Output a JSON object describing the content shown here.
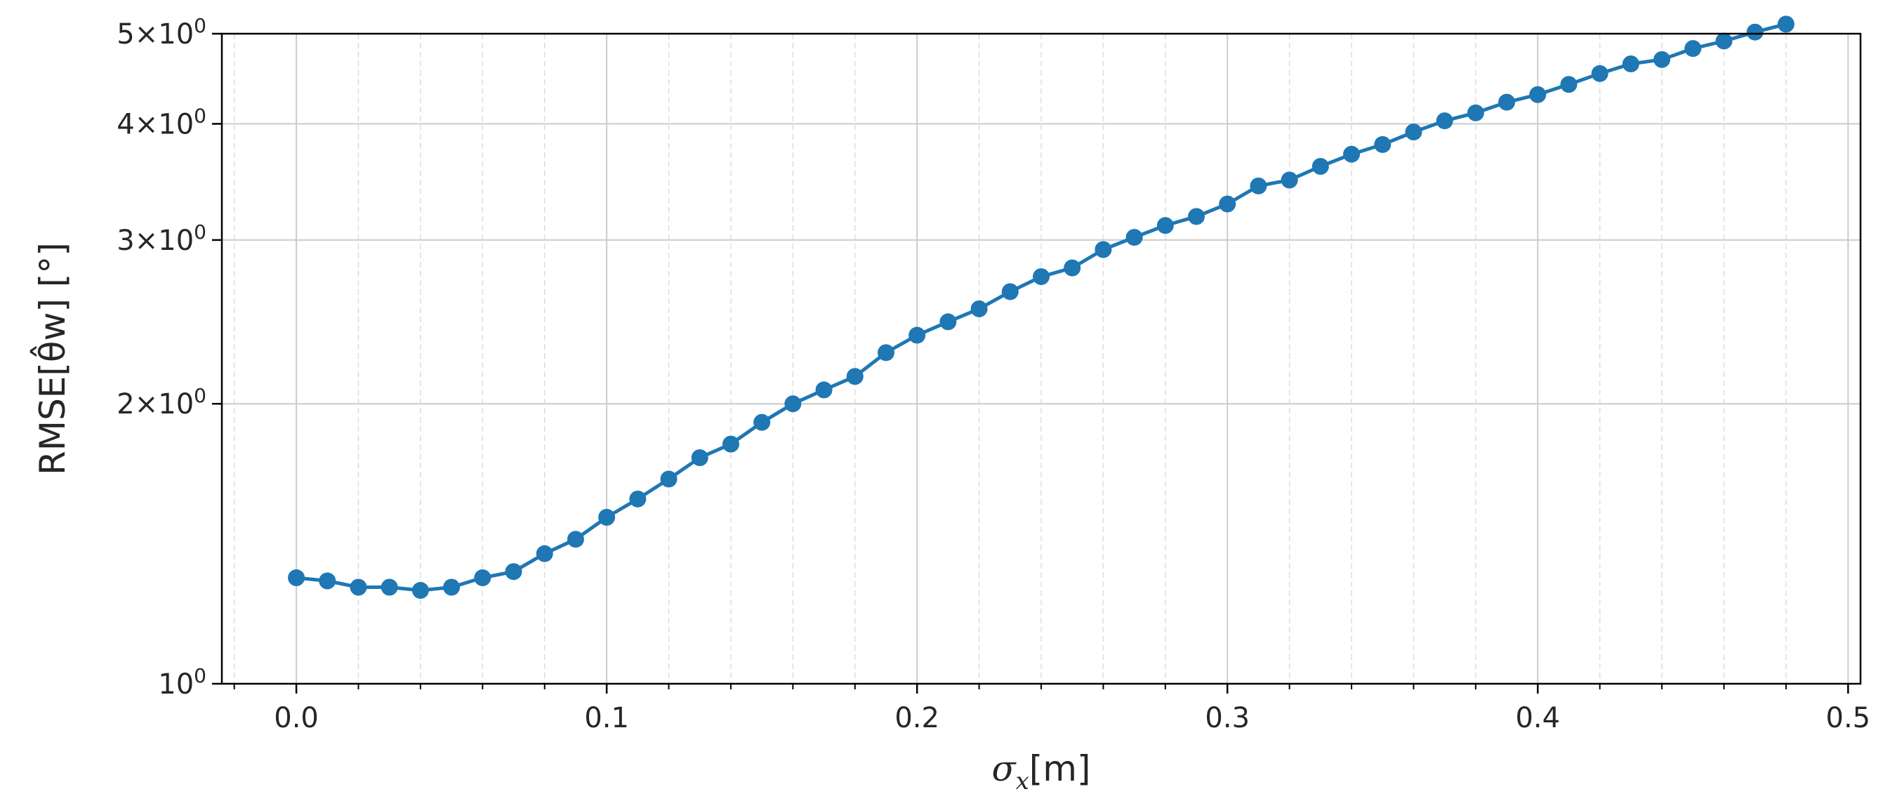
{
  "chart_data": {
    "type": "line",
    "xlabel": "σx[m]",
    "ylabel": "RMSE[θ̂w] [°]",
    "x_scale": "linear",
    "y_scale": "log",
    "xlim": [
      -0.024,
      0.504
    ],
    "ylim": [
      1,
      5
    ],
    "x_ticks": [
      0.0,
      0.1,
      0.2,
      0.3,
      0.4,
      0.5
    ],
    "x_tick_labels": [
      "0.0",
      "0.1",
      "0.2",
      "0.3",
      "0.4",
      "0.5"
    ],
    "y_ticks": [
      1,
      2,
      3,
      4,
      5
    ],
    "y_tick_labels": [
      {
        "mant": "",
        "exp": "0",
        "base": "10"
      },
      {
        "mant": "2",
        "exp": "0",
        "base": "10"
      },
      {
        "mant": "3",
        "exp": "0",
        "base": "10"
      },
      {
        "mant": "4",
        "exp": "0",
        "base": "10"
      },
      {
        "mant": "5",
        "exp": "0",
        "base": "10"
      }
    ],
    "grid": true,
    "minor_grid": true,
    "series": [
      {
        "color": "#1f77b4",
        "marker": "circle",
        "x": [
          0.0,
          0.01,
          0.02,
          0.03,
          0.04,
          0.05,
          0.06,
          0.07,
          0.08,
          0.09,
          0.1,
          0.11,
          0.12,
          0.13,
          0.14,
          0.15,
          0.16,
          0.17,
          0.18,
          0.19,
          0.2,
          0.21,
          0.22,
          0.23,
          0.24,
          0.25,
          0.26,
          0.27,
          0.28,
          0.29,
          0.3,
          0.31,
          0.32,
          0.33,
          0.34,
          0.35,
          0.36,
          0.37,
          0.38,
          0.39,
          0.4,
          0.41,
          0.42,
          0.43,
          0.44,
          0.45,
          0.46,
          0.47,
          0.48
        ],
        "y": [
          1.3,
          1.29,
          1.27,
          1.27,
          1.26,
          1.27,
          1.3,
          1.32,
          1.38,
          1.43,
          1.51,
          1.58,
          1.66,
          1.75,
          1.81,
          1.91,
          2.0,
          2.07,
          2.14,
          2.27,
          2.37,
          2.45,
          2.53,
          2.64,
          2.74,
          2.8,
          2.93,
          3.02,
          3.11,
          3.18,
          3.28,
          3.43,
          3.48,
          3.6,
          3.71,
          3.8,
          3.92,
          4.03,
          4.11,
          4.22,
          4.3,
          4.41,
          4.53,
          4.64,
          4.69,
          4.82,
          4.91,
          5.02,
          5.12
        ]
      }
    ]
  }
}
